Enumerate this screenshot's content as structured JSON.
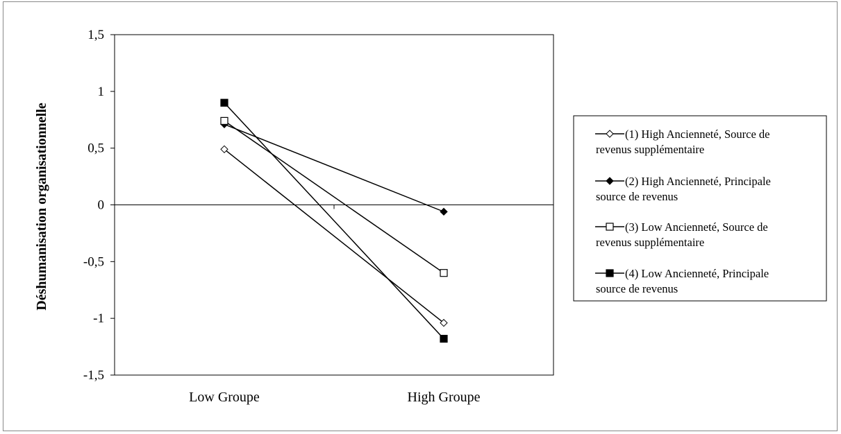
{
  "chart_data": {
    "type": "line",
    "title": "",
    "xlabel": "",
    "ylabel": "Déshumanisation organisationnelle",
    "categories": [
      "Low Groupe",
      "High Groupe"
    ],
    "ylim": [
      -1.5,
      1.5
    ],
    "yticks": [
      "1,5",
      "1",
      "0,5",
      "0",
      "-0,5",
      "-1",
      "-1,5"
    ],
    "grid": false,
    "legend_position": "right",
    "series": [
      {
        "name_lines": [
          "(1) High Ancienneté, Source de",
          "revenus supplémentaire"
        ],
        "marker": "diamond-open",
        "values": [
          0.49,
          -1.04
        ]
      },
      {
        "name_lines": [
          "(2) High Ancienneté, Principale",
          "source de revenus"
        ],
        "marker": "diamond-filled",
        "values": [
          0.71,
          -0.06
        ]
      },
      {
        "name_lines": [
          "(3) Low Ancienneté, Source de",
          "revenus supplémentaire"
        ],
        "marker": "square-open",
        "values": [
          0.74,
          -0.6
        ]
      },
      {
        "name_lines": [
          "(4) Low Ancienneté, Principale",
          "source de revenus"
        ],
        "marker": "square-filled",
        "values": [
          0.9,
          -1.18
        ]
      }
    ]
  }
}
